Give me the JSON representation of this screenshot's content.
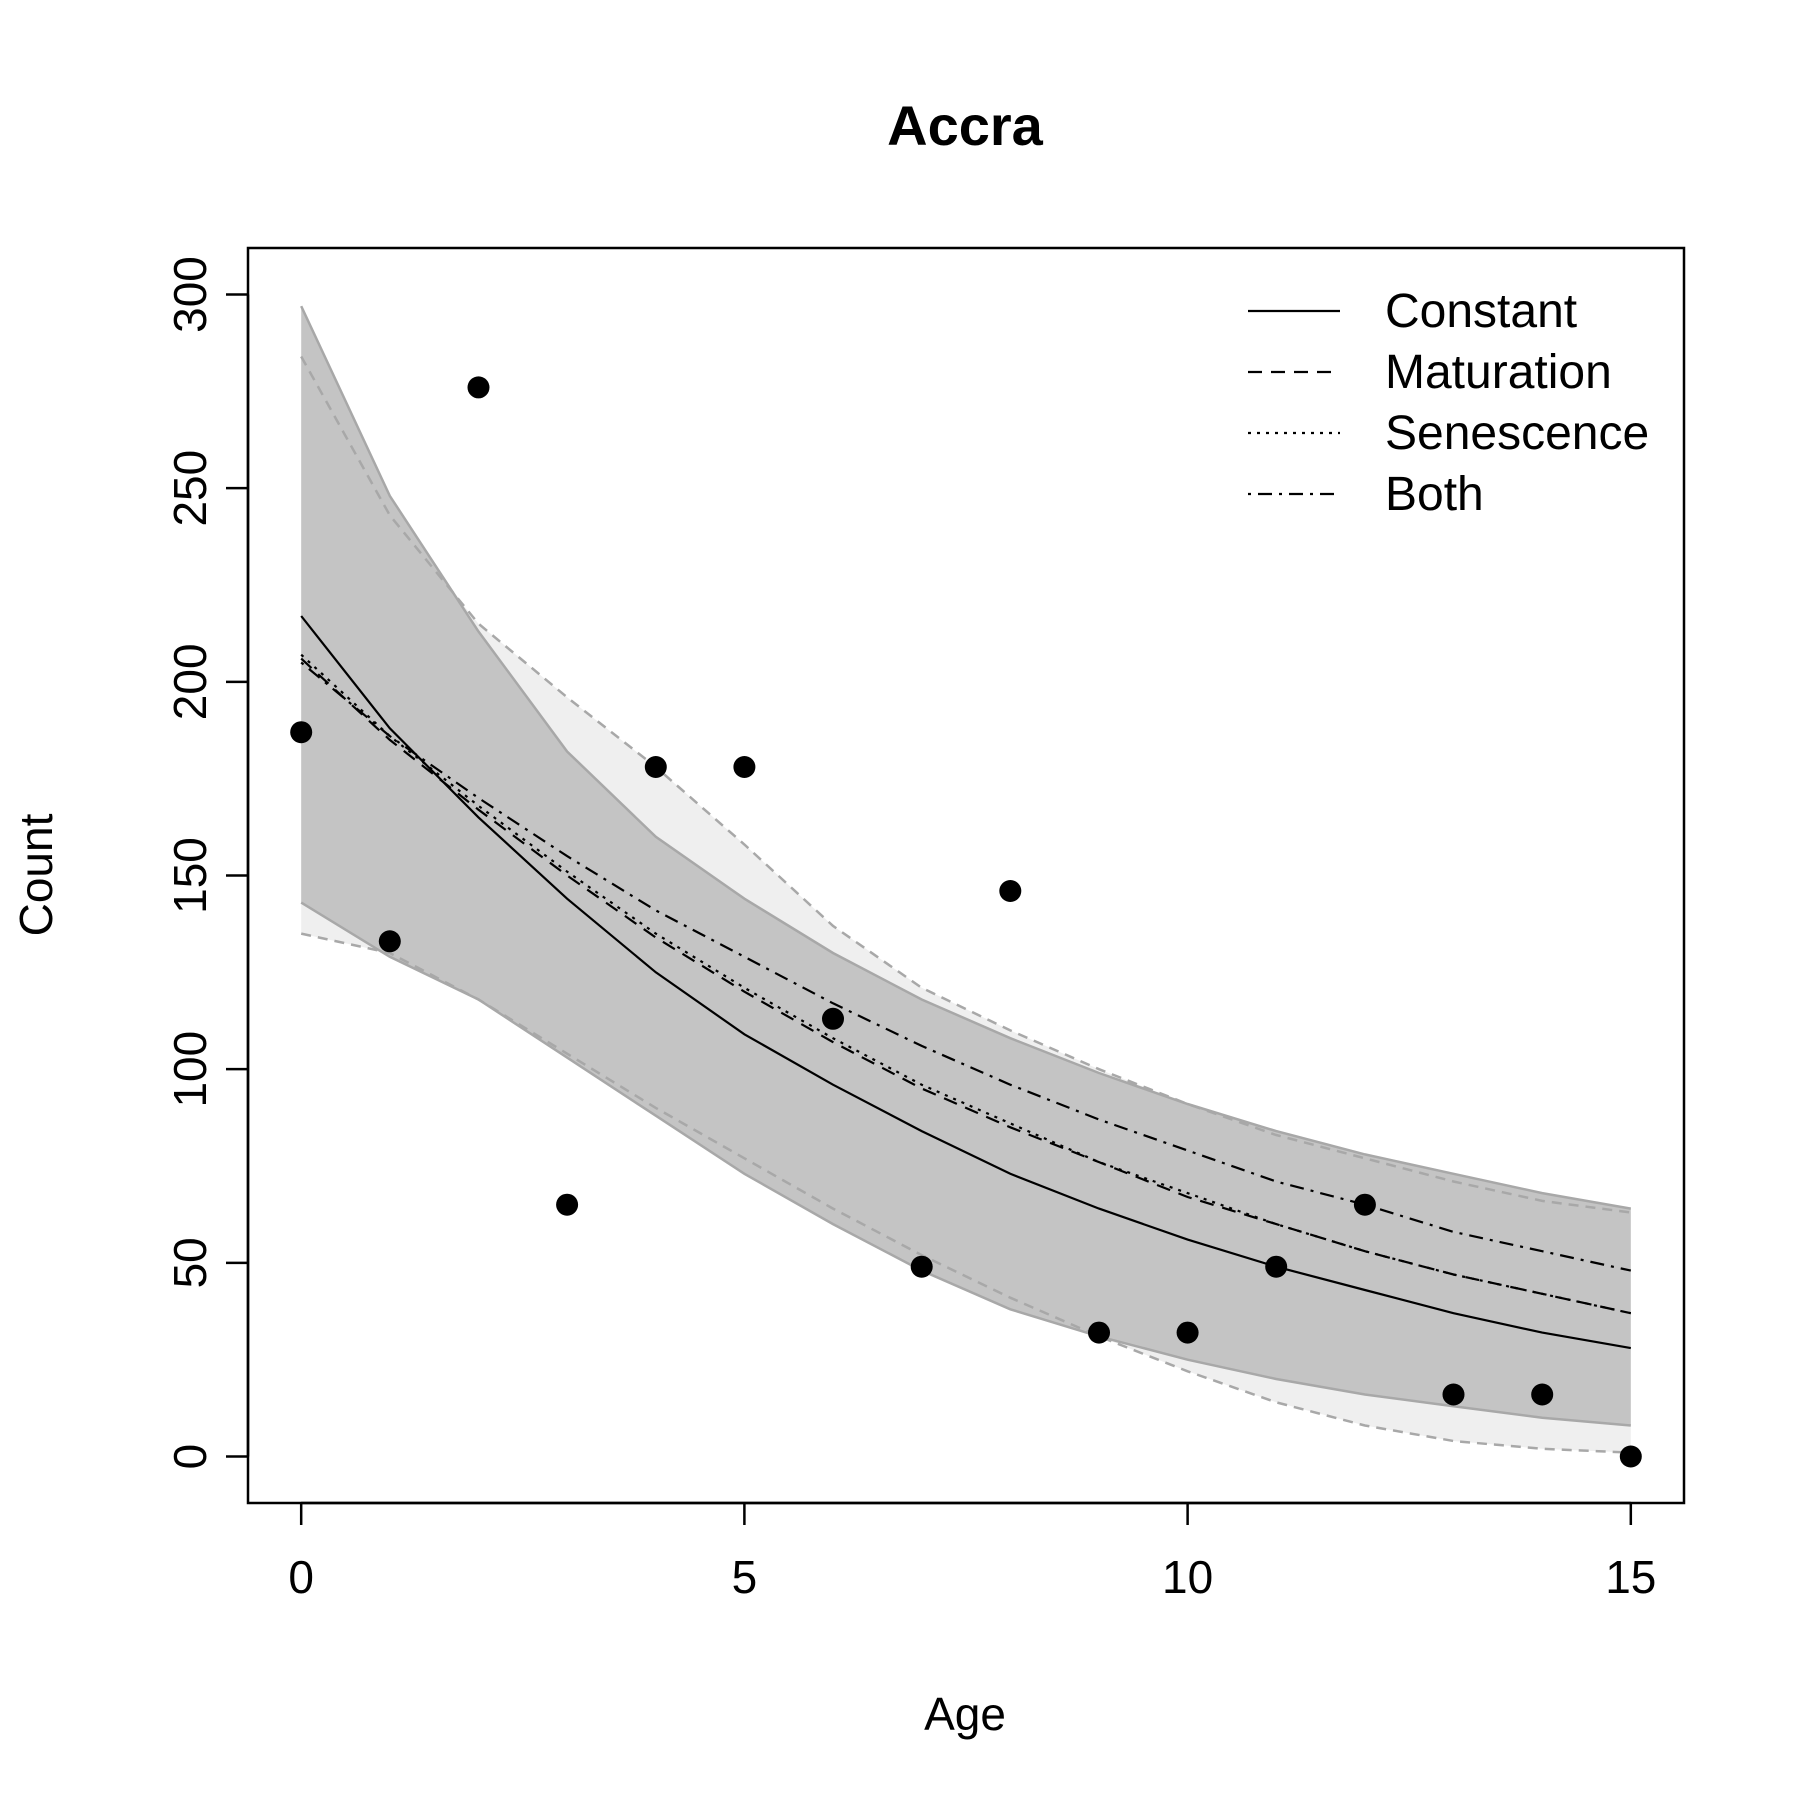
{
  "chart_data": {
    "type": "line",
    "title": "Accra",
    "xlabel": "Age",
    "ylabel": "Count",
    "xlim": [
      -0.6,
      15.6
    ],
    "ylim": [
      -12,
      312
    ],
    "x_ticks": [
      0,
      5,
      10,
      15
    ],
    "y_ticks": [
      0,
      50,
      100,
      150,
      200,
      250,
      300
    ],
    "x_tick_labels": [
      "0",
      "5",
      "10",
      "15"
    ],
    "y_tick_labels": [
      "0",
      "50",
      "100",
      "150",
      "200",
      "250",
      "300"
    ],
    "grid": false,
    "legend_position": "top-right",
    "observed": {
      "x": [
        0,
        1,
        2,
        3,
        4,
        5,
        6,
        7,
        8,
        9,
        10,
        11,
        12,
        13,
        14,
        15
      ],
      "y": [
        187,
        133,
        276,
        65,
        178,
        178,
        113,
        49,
        146,
        32,
        32,
        49,
        65,
        16,
        16,
        0
      ]
    },
    "x": [
      0,
      1,
      2,
      3,
      4,
      5,
      6,
      7,
      8,
      9,
      10,
      11,
      12,
      13,
      14,
      15
    ],
    "series": [
      {
        "name": "Constant",
        "style": "solid",
        "values": [
          217,
          188,
          165,
          144,
          125,
          109,
          96,
          84,
          73,
          64,
          56,
          49,
          43,
          37,
          32,
          28
        ]
      },
      {
        "name": "Maturation",
        "style": "dashed",
        "values": [
          206,
          185,
          167,
          150,
          134,
          120,
          107,
          95,
          85,
          76,
          67,
          60,
          53,
          47,
          42,
          37
        ]
      },
      {
        "name": "Senescence",
        "style": "dotted",
        "values": [
          207,
          186,
          168,
          151,
          135,
          121,
          108,
          96,
          86,
          76,
          68,
          60,
          53,
          47,
          42,
          37
        ]
      },
      {
        "name": "Both",
        "style": "dotdash",
        "values": [
          205,
          186,
          170,
          155,
          141,
          129,
          117,
          106,
          96,
          87,
          79,
          71,
          65,
          58,
          53,
          48
        ]
      }
    ],
    "bands": [
      {
        "upper": [
          297,
          248,
          213,
          182,
          160,
          144,
          130,
          118,
          108,
          99,
          91,
          84,
          78,
          73,
          68,
          64
        ],
        "lower": [
          143,
          129,
          118,
          103,
          88,
          73,
          60,
          48,
          38,
          31,
          25,
          20,
          16,
          13,
          10,
          8
        ]
      },
      {
        "upper": [
          284,
          243,
          215,
          196,
          178,
          158,
          137,
          121,
          110,
          100,
          91,
          83,
          77,
          71,
          66,
          63
        ],
        "lower": [
          135,
          130,
          118,
          104,
          90,
          77,
          64,
          52,
          41,
          31,
          22,
          14,
          8,
          4,
          2,
          1
        ]
      }
    ],
    "colors": {
      "band": "#c4c4c4",
      "band_light": "#efefef",
      "band_edge": "#a8a8a8",
      "line": "#000000",
      "point": "#000000"
    }
  }
}
